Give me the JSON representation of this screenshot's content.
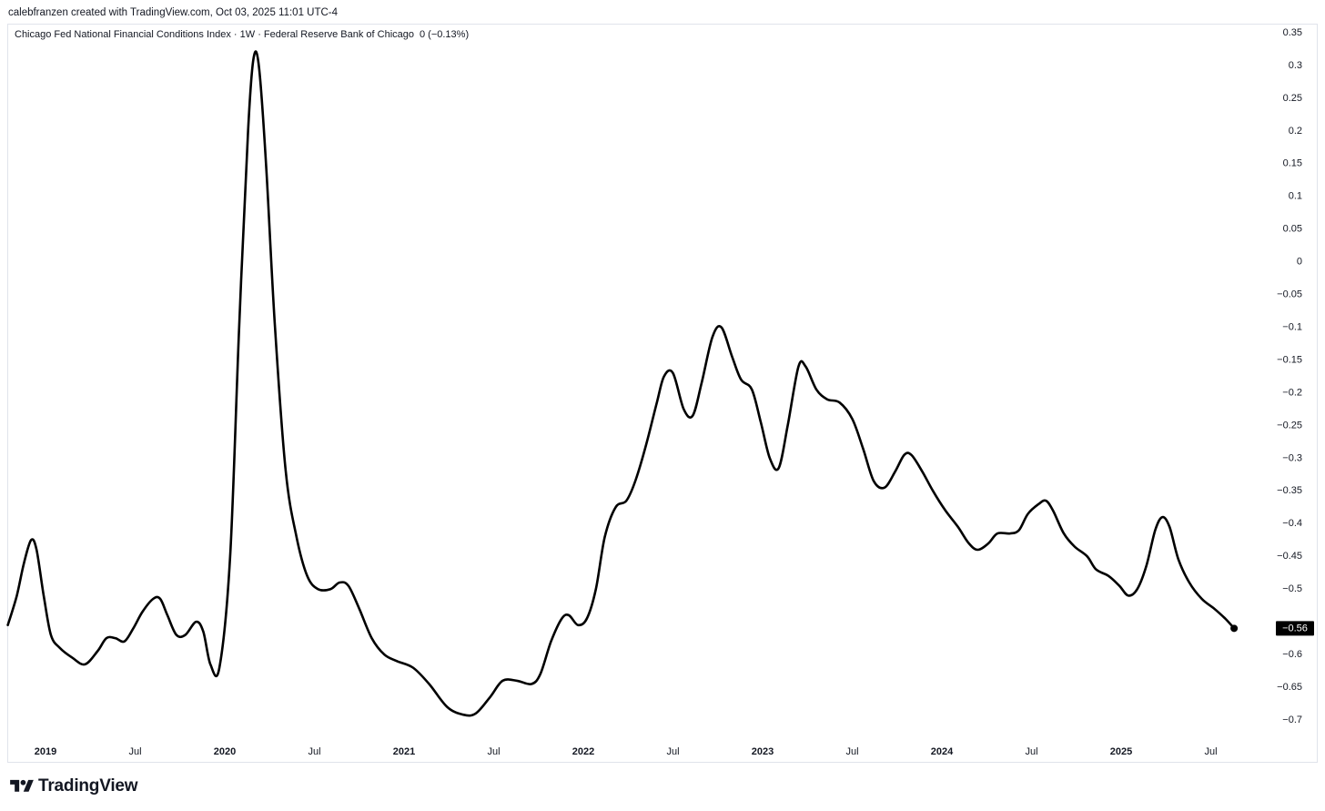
{
  "header": {
    "credit": "calebfranzen created with TradingView.com, Oct 03, 2025 11:01 UTC-4"
  },
  "legend": {
    "title": "Chicago Fed National Financial Conditions Index · 1W · Federal Reserve Bank of Chicago",
    "value": "0 (−0.13%)"
  },
  "brand": {
    "logo_icon": "tradingview-logo-icon",
    "name": "TradingView"
  },
  "colors": {
    "line": "#000000",
    "last_price_badge_bg": "#000000",
    "last_price_badge_text": "#ffffff",
    "axis_text": "#131722",
    "border": "#e0e3eb"
  },
  "chart_data": {
    "type": "line",
    "title": "Chicago Fed National Financial Conditions Index · 1W · Federal Reserve Bank of Chicago",
    "xlabel": "",
    "ylabel": "",
    "ylim": [
      -0.72,
      0.36
    ],
    "xlim": [
      2018.79,
      2025.99
    ],
    "grid": false,
    "y_ticks": [
      0.35,
      0.3,
      0.25,
      0.2,
      0.15,
      0.1,
      0.05,
      0,
      -0.05,
      -0.1,
      -0.15,
      -0.2,
      -0.25,
      -0.3,
      -0.35,
      -0.4,
      -0.45,
      -0.5,
      -0.6,
      -0.65,
      -0.7
    ],
    "y_tick_labels": [
      "0.35",
      "0.3",
      "0.25",
      "0.2",
      "0.15",
      "0.1",
      "0.05",
      "0",
      "−0.05",
      "−0.1",
      "−0.15",
      "−0.2",
      "−0.25",
      "−0.3",
      "−0.35",
      "−0.4",
      "−0.45",
      "−0.5",
      "−0.6",
      "−0.65",
      "−0.7"
    ],
    "x_ticks": [
      {
        "x": 2019.0,
        "label": "2019",
        "bold": true
      },
      {
        "x": 2019.5,
        "label": "Jul",
        "bold": false
      },
      {
        "x": 2020.0,
        "label": "2020",
        "bold": true
      },
      {
        "x": 2020.5,
        "label": "Jul",
        "bold": false
      },
      {
        "x": 2021.0,
        "label": "2021",
        "bold": true
      },
      {
        "x": 2021.5,
        "label": "Jul",
        "bold": false
      },
      {
        "x": 2022.0,
        "label": "2022",
        "bold": true
      },
      {
        "x": 2022.5,
        "label": "Jul",
        "bold": false
      },
      {
        "x": 2023.0,
        "label": "2023",
        "bold": true
      },
      {
        "x": 2023.5,
        "label": "Jul",
        "bold": false
      },
      {
        "x": 2024.0,
        "label": "2024",
        "bold": true
      },
      {
        "x": 2024.5,
        "label": "Jul",
        "bold": false
      },
      {
        "x": 2025.0,
        "label": "2025",
        "bold": true
      },
      {
        "x": 2025.5,
        "label": "Jul",
        "bold": false
      }
    ],
    "last_value": -0.56,
    "last_value_label": "−0.56",
    "series": [
      {
        "points": [
          [
            2018.79,
            -0.555
          ],
          [
            2018.84,
            -0.51
          ],
          [
            2018.88,
            -0.46
          ],
          [
            2018.92,
            -0.425
          ],
          [
            2018.95,
            -0.44
          ],
          [
            2018.99,
            -0.51
          ],
          [
            2019.03,
            -0.57
          ],
          [
            2019.08,
            -0.59
          ],
          [
            2019.15,
            -0.605
          ],
          [
            2019.22,
            -0.615
          ],
          [
            2019.29,
            -0.595
          ],
          [
            2019.34,
            -0.575
          ],
          [
            2019.39,
            -0.575
          ],
          [
            2019.44,
            -0.58
          ],
          [
            2019.49,
            -0.56
          ],
          [
            2019.54,
            -0.535
          ],
          [
            2019.6,
            -0.515
          ],
          [
            2019.64,
            -0.515
          ],
          [
            2019.68,
            -0.54
          ],
          [
            2019.73,
            -0.57
          ],
          [
            2019.78,
            -0.57
          ],
          [
            2019.84,
            -0.55
          ],
          [
            2019.88,
            -0.565
          ],
          [
            2019.92,
            -0.615
          ],
          [
            2019.97,
            -0.62
          ],
          [
            2020.03,
            -0.45
          ],
          [
            2020.08,
            -0.1
          ],
          [
            2020.13,
            0.2
          ],
          [
            2020.16,
            0.31
          ],
          [
            2020.19,
            0.3
          ],
          [
            2020.23,
            0.15
          ],
          [
            2020.28,
            -0.1
          ],
          [
            2020.34,
            -0.32
          ],
          [
            2020.4,
            -0.42
          ],
          [
            2020.46,
            -0.48
          ],
          [
            2020.52,
            -0.5
          ],
          [
            2020.59,
            -0.5
          ],
          [
            2020.64,
            -0.49
          ],
          [
            2020.69,
            -0.495
          ],
          [
            2020.75,
            -0.53
          ],
          [
            2020.82,
            -0.575
          ],
          [
            2020.89,
            -0.6
          ],
          [
            2020.96,
            -0.61
          ],
          [
            2021.05,
            -0.62
          ],
          [
            2021.14,
            -0.645
          ],
          [
            2021.24,
            -0.68
          ],
          [
            2021.33,
            -0.692
          ],
          [
            2021.4,
            -0.69
          ],
          [
            2021.48,
            -0.665
          ],
          [
            2021.55,
            -0.64
          ],
          [
            2021.63,
            -0.64
          ],
          [
            2021.71,
            -0.645
          ],
          [
            2021.76,
            -0.63
          ],
          [
            2021.82,
            -0.58
          ],
          [
            2021.88,
            -0.545
          ],
          [
            2021.92,
            -0.54
          ],
          [
            2021.97,
            -0.555
          ],
          [
            2022.02,
            -0.545
          ],
          [
            2022.07,
            -0.5
          ],
          [
            2022.12,
            -0.42
          ],
          [
            2022.18,
            -0.375
          ],
          [
            2022.24,
            -0.365
          ],
          [
            2022.29,
            -0.335
          ],
          [
            2022.35,
            -0.28
          ],
          [
            2022.41,
            -0.215
          ],
          [
            2022.45,
            -0.175
          ],
          [
            2022.5,
            -0.17
          ],
          [
            2022.56,
            -0.225
          ],
          [
            2022.61,
            -0.235
          ],
          [
            2022.66,
            -0.185
          ],
          [
            2022.72,
            -0.115
          ],
          [
            2022.77,
            -0.1
          ],
          [
            2022.83,
            -0.145
          ],
          [
            2022.88,
            -0.18
          ],
          [
            2022.94,
            -0.195
          ],
          [
            2022.99,
            -0.245
          ],
          [
            2023.04,
            -0.3
          ],
          [
            2023.09,
            -0.315
          ],
          [
            2023.14,
            -0.25
          ],
          [
            2023.2,
            -0.16
          ],
          [
            2023.24,
            -0.16
          ],
          [
            2023.3,
            -0.195
          ],
          [
            2023.36,
            -0.21
          ],
          [
            2023.43,
            -0.215
          ],
          [
            2023.5,
            -0.24
          ],
          [
            2023.56,
            -0.285
          ],
          [
            2023.62,
            -0.335
          ],
          [
            2023.68,
            -0.345
          ],
          [
            2023.74,
            -0.32
          ],
          [
            2023.79,
            -0.295
          ],
          [
            2023.83,
            -0.295
          ],
          [
            2023.89,
            -0.32
          ],
          [
            2023.95,
            -0.35
          ],
          [
            2024.02,
            -0.38
          ],
          [
            2024.09,
            -0.405
          ],
          [
            2024.15,
            -0.43
          ],
          [
            2024.2,
            -0.44
          ],
          [
            2024.26,
            -0.43
          ],
          [
            2024.31,
            -0.415
          ],
          [
            2024.38,
            -0.415
          ],
          [
            2024.43,
            -0.41
          ],
          [
            2024.48,
            -0.385
          ],
          [
            2024.54,
            -0.37
          ],
          [
            2024.58,
            -0.365
          ],
          [
            2024.62,
            -0.38
          ],
          [
            2024.68,
            -0.415
          ],
          [
            2024.74,
            -0.435
          ],
          [
            2024.81,
            -0.45
          ],
          [
            2024.86,
            -0.47
          ],
          [
            2024.93,
            -0.48
          ],
          [
            2024.99,
            -0.495
          ],
          [
            2025.04,
            -0.51
          ],
          [
            2025.09,
            -0.5
          ],
          [
            2025.14,
            -0.465
          ],
          [
            2025.19,
            -0.41
          ],
          [
            2025.23,
            -0.39
          ],
          [
            2025.27,
            -0.405
          ],
          [
            2025.32,
            -0.455
          ],
          [
            2025.38,
            -0.49
          ],
          [
            2025.45,
            -0.515
          ],
          [
            2025.52,
            -0.53
          ],
          [
            2025.58,
            -0.545
          ],
          [
            2025.63,
            -0.56
          ]
        ]
      }
    ]
  }
}
